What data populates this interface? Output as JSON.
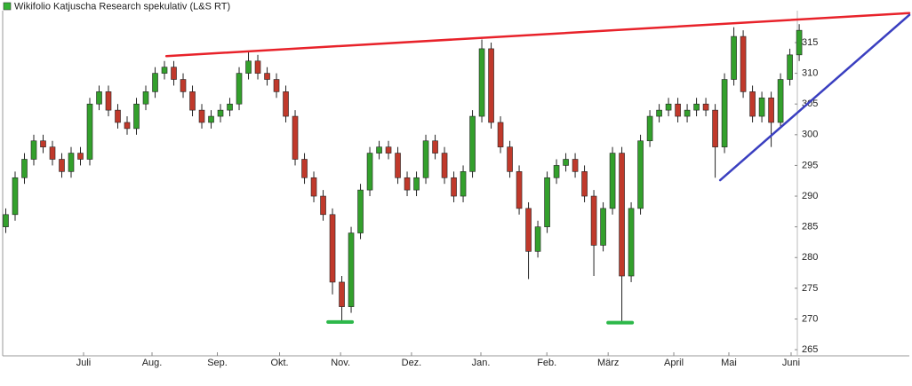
{
  "chart_data": {
    "type": "candlestick",
    "title": "Wikifolio Katjuscha Research spekulativ (L&S RT)",
    "legend_color": "#33b233",
    "up_color": "#33a02c",
    "down_color": "#c0392b",
    "xlim": [
      0,
      291.4
    ],
    "ylim": [
      264,
      320.2
    ],
    "xticks": [
      {
        "value": 26,
        "label": "Juli"
      },
      {
        "value": 48,
        "label": "Aug."
      },
      {
        "value": 69,
        "label": "Sep."
      },
      {
        "value": 89,
        "label": "Okt."
      },
      {
        "value": 108.6,
        "label": "Nov."
      },
      {
        "value": 131.4,
        "label": "Dez."
      },
      {
        "value": 153.7,
        "label": "Jan."
      },
      {
        "value": 174.9,
        "label": "Feb."
      },
      {
        "value": 194.6,
        "label": "März"
      },
      {
        "value": 215.7,
        "label": "April"
      },
      {
        "value": 233.4,
        "label": "Mai"
      },
      {
        "value": 253.4,
        "label": "Juni"
      }
    ],
    "yticks": [
      265,
      270,
      275,
      280,
      285,
      290,
      295,
      300,
      305,
      310,
      315
    ],
    "x": [
      1,
      4,
      7,
      10,
      13,
      16,
      19,
      22,
      25,
      28,
      31,
      34,
      37,
      40,
      43,
      46,
      49,
      52,
      55,
      58,
      61,
      64,
      67,
      70,
      73,
      76,
      79,
      82,
      85,
      88,
      91,
      94,
      97,
      100,
      103,
      106,
      109,
      112,
      115,
      118,
      121,
      124,
      127,
      130,
      133,
      136,
      139,
      142,
      145,
      148,
      151,
      154,
      157,
      160,
      163,
      166,
      169,
      172,
      175,
      178,
      181,
      184,
      187,
      190,
      193,
      196,
      199,
      202,
      205,
      208,
      211,
      214,
      217,
      220,
      223,
      226,
      229,
      232,
      235,
      238,
      241,
      244,
      247,
      250,
      253,
      256
    ],
    "open": [
      285,
      287,
      293,
      296,
      299,
      298,
      296,
      294,
      297,
      296,
      305,
      307,
      304,
      302,
      301,
      305,
      307,
      310,
      311,
      309,
      307,
      304,
      302,
      303,
      304,
      305,
      310,
      312,
      310,
      309,
      307,
      303,
      296,
      293,
      290,
      287,
      276,
      272,
      284,
      291,
      297,
      298,
      297,
      293,
      291,
      293,
      299,
      297,
      293,
      290,
      294,
      303,
      314,
      302,
      298,
      294,
      288,
      281,
      285,
      293,
      295,
      296,
      294,
      290,
      282,
      288,
      297,
      277,
      288,
      299,
      303,
      304,
      305,
      303,
      304,
      305,
      304,
      298,
      309,
      316,
      307,
      303,
      306,
      302,
      309,
      313
    ],
    "high": [
      288,
      294,
      297,
      300,
      300,
      299,
      297,
      298,
      298,
      306,
      308,
      308,
      305,
      303,
      306,
      308,
      311,
      312,
      312,
      310,
      308,
      305,
      304,
      305,
      306,
      311,
      313.5,
      313,
      311,
      310,
      308,
      304,
      297,
      294,
      291,
      288,
      277,
      285,
      292,
      298,
      299,
      299,
      298,
      294,
      294,
      300,
      300,
      298,
      294,
      295,
      304,
      315.5,
      315,
      303,
      299,
      295,
      289,
      286,
      294,
      296,
      297,
      297,
      295,
      291,
      289,
      298,
      298,
      289,
      300,
      304,
      305,
      306,
      306,
      305,
      306,
      306,
      305,
      310,
      317.5,
      317,
      308,
      307,
      307,
      310,
      314,
      318
    ],
    "low": [
      284,
      286,
      292,
      295,
      297,
      295,
      293,
      293,
      295,
      295,
      304,
      303,
      301,
      300,
      300,
      304,
      306,
      309,
      308,
      306,
      303,
      301,
      301,
      302,
      303,
      304,
      309,
      309,
      308,
      306,
      302,
      295,
      292,
      289,
      286,
      274,
      269.5,
      271,
      283,
      290,
      296,
      296,
      292,
      290,
      290,
      292,
      296,
      292,
      289,
      289,
      293,
      302,
      301,
      297,
      293,
      287,
      276.5,
      280,
      284,
      292,
      294,
      293,
      289,
      277,
      281,
      287,
      269.5,
      276,
      287,
      298,
      302,
      303,
      302,
      302,
      303,
      303,
      293,
      297,
      308,
      306,
      302,
      302,
      298,
      301,
      308,
      312
    ],
    "close": [
      287,
      293,
      296,
      299,
      298,
      296,
      294,
      297,
      296,
      305,
      307,
      304,
      302,
      301,
      305,
      307,
      310,
      311,
      309,
      307,
      304,
      302,
      303,
      304,
      305,
      310,
      312,
      310,
      309,
      307,
      303,
      296,
      293,
      290,
      287,
      276,
      272,
      284,
      291,
      297,
      298,
      297,
      293,
      291,
      293,
      299,
      297,
      293,
      290,
      294,
      303,
      314,
      302,
      298,
      294,
      288,
      281,
      285,
      293,
      295,
      296,
      294,
      290,
      282,
      288,
      297,
      277,
      288,
      299,
      303,
      304,
      305,
      303,
      304,
      305,
      304,
      298,
      309,
      316,
      307,
      303,
      306,
      302,
      309,
      313,
      317
    ],
    "lines": [
      {
        "color": "#e8222a",
        "x": [
          52.6,
          291.4
        ],
        "y": [
          312.8,
          319.8
        ]
      },
      {
        "color": "#3a3fc0",
        "x": [
          230.6,
          291.4
        ],
        "y": [
          292.6,
          319.5
        ]
      },
      {
        "color": "#2db84a",
        "x": [
          104.6,
          112.3
        ],
        "y": [
          269.5,
          269.5
        ]
      },
      {
        "color": "#2db84a",
        "x": [
          194.6,
          202.3
        ],
        "y": [
          269.4,
          269.4
        ]
      }
    ]
  }
}
